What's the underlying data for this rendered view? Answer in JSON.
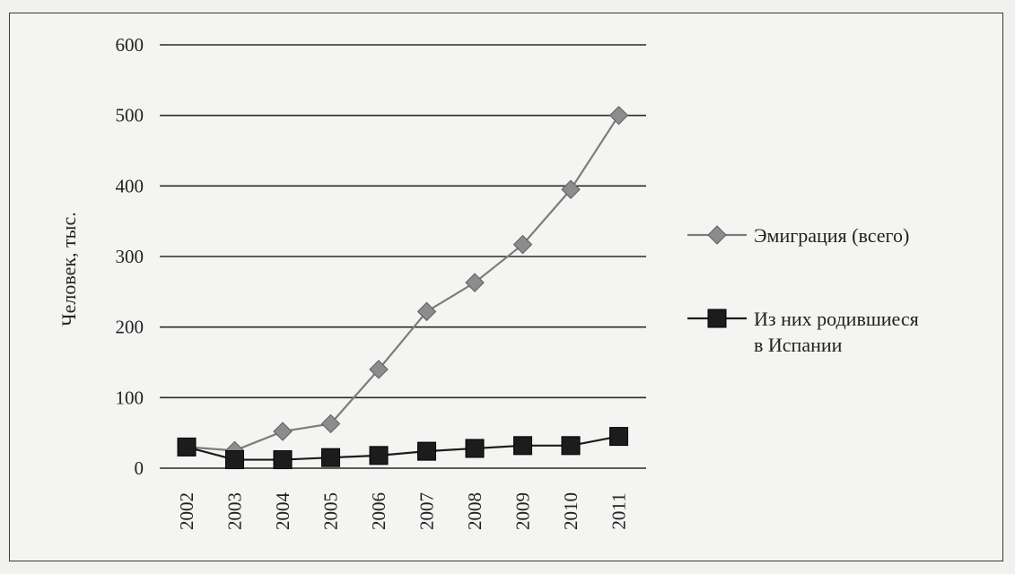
{
  "chart_data": {
    "type": "line",
    "title": "",
    "xlabel": "",
    "ylabel": "Человек, тыс.",
    "categories": [
      "2002",
      "2003",
      "2004",
      "2005",
      "2006",
      "2007",
      "2008",
      "2009",
      "2010",
      "2011"
    ],
    "ylim": [
      0,
      600
    ],
    "yticks": [
      0,
      100,
      200,
      300,
      400,
      500,
      600
    ],
    "grid": true,
    "legend_position": "right",
    "series": [
      {
        "name": "Эмиграция (всего)",
        "marker": "diamond",
        "color": "#8c8c8c",
        "values": [
          30,
          25,
          52,
          63,
          140,
          222,
          263,
          317,
          395,
          500
        ]
      },
      {
        "name": "Из них родившиеся в Испании",
        "name_lines": [
          "Из них родившиеся",
          "в Испании"
        ],
        "marker": "square",
        "color": "#1c1c1c",
        "values": [
          30,
          12,
          12,
          15,
          18,
          24,
          28,
          32,
          32,
          45
        ]
      }
    ]
  }
}
